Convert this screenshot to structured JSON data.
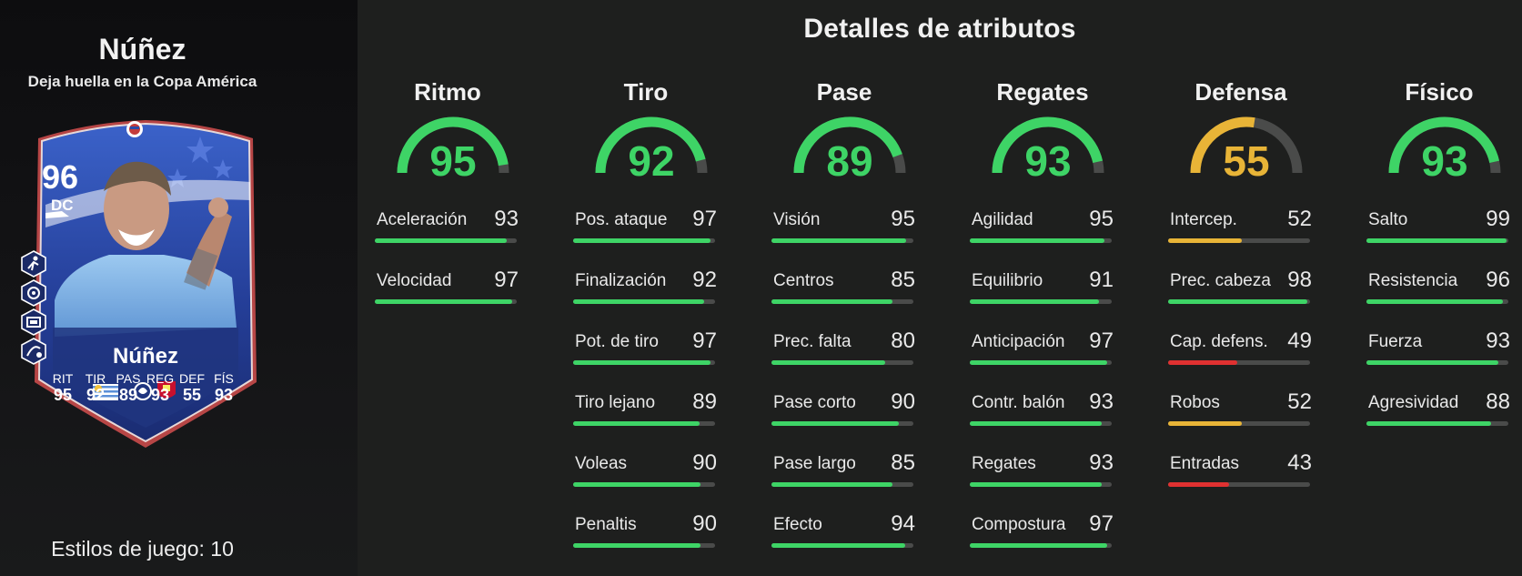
{
  "player": {
    "name": "Núñez",
    "subtitle": "Deja huella en la Copa América",
    "playstyles_label": "Estilos de juego: 10"
  },
  "card": {
    "rating": "96",
    "position": "DC",
    "name": "Núñez",
    "stats": [
      {
        "label": "RIT",
        "value": "95"
      },
      {
        "label": "TIR",
        "value": "92"
      },
      {
        "label": "PAS",
        "value": "89"
      },
      {
        "label": "REG",
        "value": "93"
      },
      {
        "label": "DEF",
        "value": "55"
      },
      {
        "label": "FÍS",
        "value": "93"
      }
    ],
    "icons": [
      "copa-america-logo-icon",
      "uruguay-flag-icon",
      "premier-league-icon",
      "liverpool-crest-icon"
    ],
    "playstyle_icons": [
      "playstyle-acrobatic-icon",
      "playstyle-power-shot-icon",
      "playstyle-technical-icon",
      "playstyle-finesse-icon"
    ]
  },
  "title": "Detalles de atributos",
  "colors": {
    "green": "#3ed466",
    "yellow": "#e8b437",
    "red": "#e03131",
    "track": "#4a4b4a"
  },
  "categories": [
    {
      "name": "Ritmo",
      "value": "95",
      "color": "green",
      "attributes": [
        {
          "label": "Aceleración",
          "value": "93"
        },
        {
          "label": "Velocidad",
          "value": "97"
        }
      ]
    },
    {
      "name": "Tiro",
      "value": "92",
      "color": "green",
      "attributes": [
        {
          "label": "Pos. ataque",
          "value": "97"
        },
        {
          "label": "Finalización",
          "value": "92"
        },
        {
          "label": "Pot. de tiro",
          "value": "97"
        },
        {
          "label": "Tiro lejano",
          "value": "89"
        },
        {
          "label": "Voleas",
          "value": "90"
        },
        {
          "label": "Penaltis",
          "value": "90"
        }
      ]
    },
    {
      "name": "Pase",
      "value": "89",
      "color": "green",
      "attributes": [
        {
          "label": "Visión",
          "value": "95"
        },
        {
          "label": "Centros",
          "value": "85"
        },
        {
          "label": "Prec. falta",
          "value": "80"
        },
        {
          "label": "Pase corto",
          "value": "90"
        },
        {
          "label": "Pase largo",
          "value": "85"
        },
        {
          "label": "Efecto",
          "value": "94"
        }
      ]
    },
    {
      "name": "Regates",
      "value": "93",
      "color": "green",
      "attributes": [
        {
          "label": "Agilidad",
          "value": "95"
        },
        {
          "label": "Equilibrio",
          "value": "91"
        },
        {
          "label": "Anticipación",
          "value": "97"
        },
        {
          "label": "Contr. balón",
          "value": "93"
        },
        {
          "label": "Regates",
          "value": "93"
        },
        {
          "label": "Compostura",
          "value": "97"
        }
      ]
    },
    {
      "name": "Defensa",
      "value": "55",
      "color": "yellow",
      "attributes": [
        {
          "label": "Intercep.",
          "value": "52"
        },
        {
          "label": "Prec. cabeza",
          "value": "98"
        },
        {
          "label": "Cap. defens.",
          "value": "49"
        },
        {
          "label": "Robos",
          "value": "52"
        },
        {
          "label": "Entradas",
          "value": "43"
        }
      ]
    },
    {
      "name": "Físico",
      "value": "93",
      "color": "green",
      "attributes": [
        {
          "label": "Salto",
          "value": "99"
        },
        {
          "label": "Resistencia",
          "value": "96"
        },
        {
          "label": "Fuerza",
          "value": "93"
        },
        {
          "label": "Agresividad",
          "value": "88"
        }
      ]
    }
  ]
}
